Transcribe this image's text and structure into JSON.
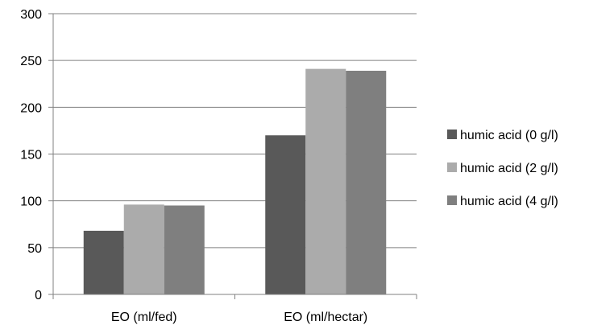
{
  "chart_data": {
    "type": "bar",
    "categories": [
      "EO (ml/fed)",
      "EO (ml/hectar)"
    ],
    "series": [
      {
        "name": "humic acid (0 g/l)",
        "values": [
          68,
          170
        ],
        "color": "#595959"
      },
      {
        "name": "humic acid (2 g/l)",
        "values": [
          96,
          241
        ],
        "color": "#ababab"
      },
      {
        "name": "humic acid (4 g/l)",
        "values": [
          95,
          239
        ],
        "color": "#7f7f7f"
      }
    ],
    "yticks": [
      "0",
      "50",
      "100",
      "150",
      "200",
      "250",
      "300"
    ],
    "ylim": [
      0,
      300
    ],
    "grid": true,
    "legend_position": "right"
  }
}
